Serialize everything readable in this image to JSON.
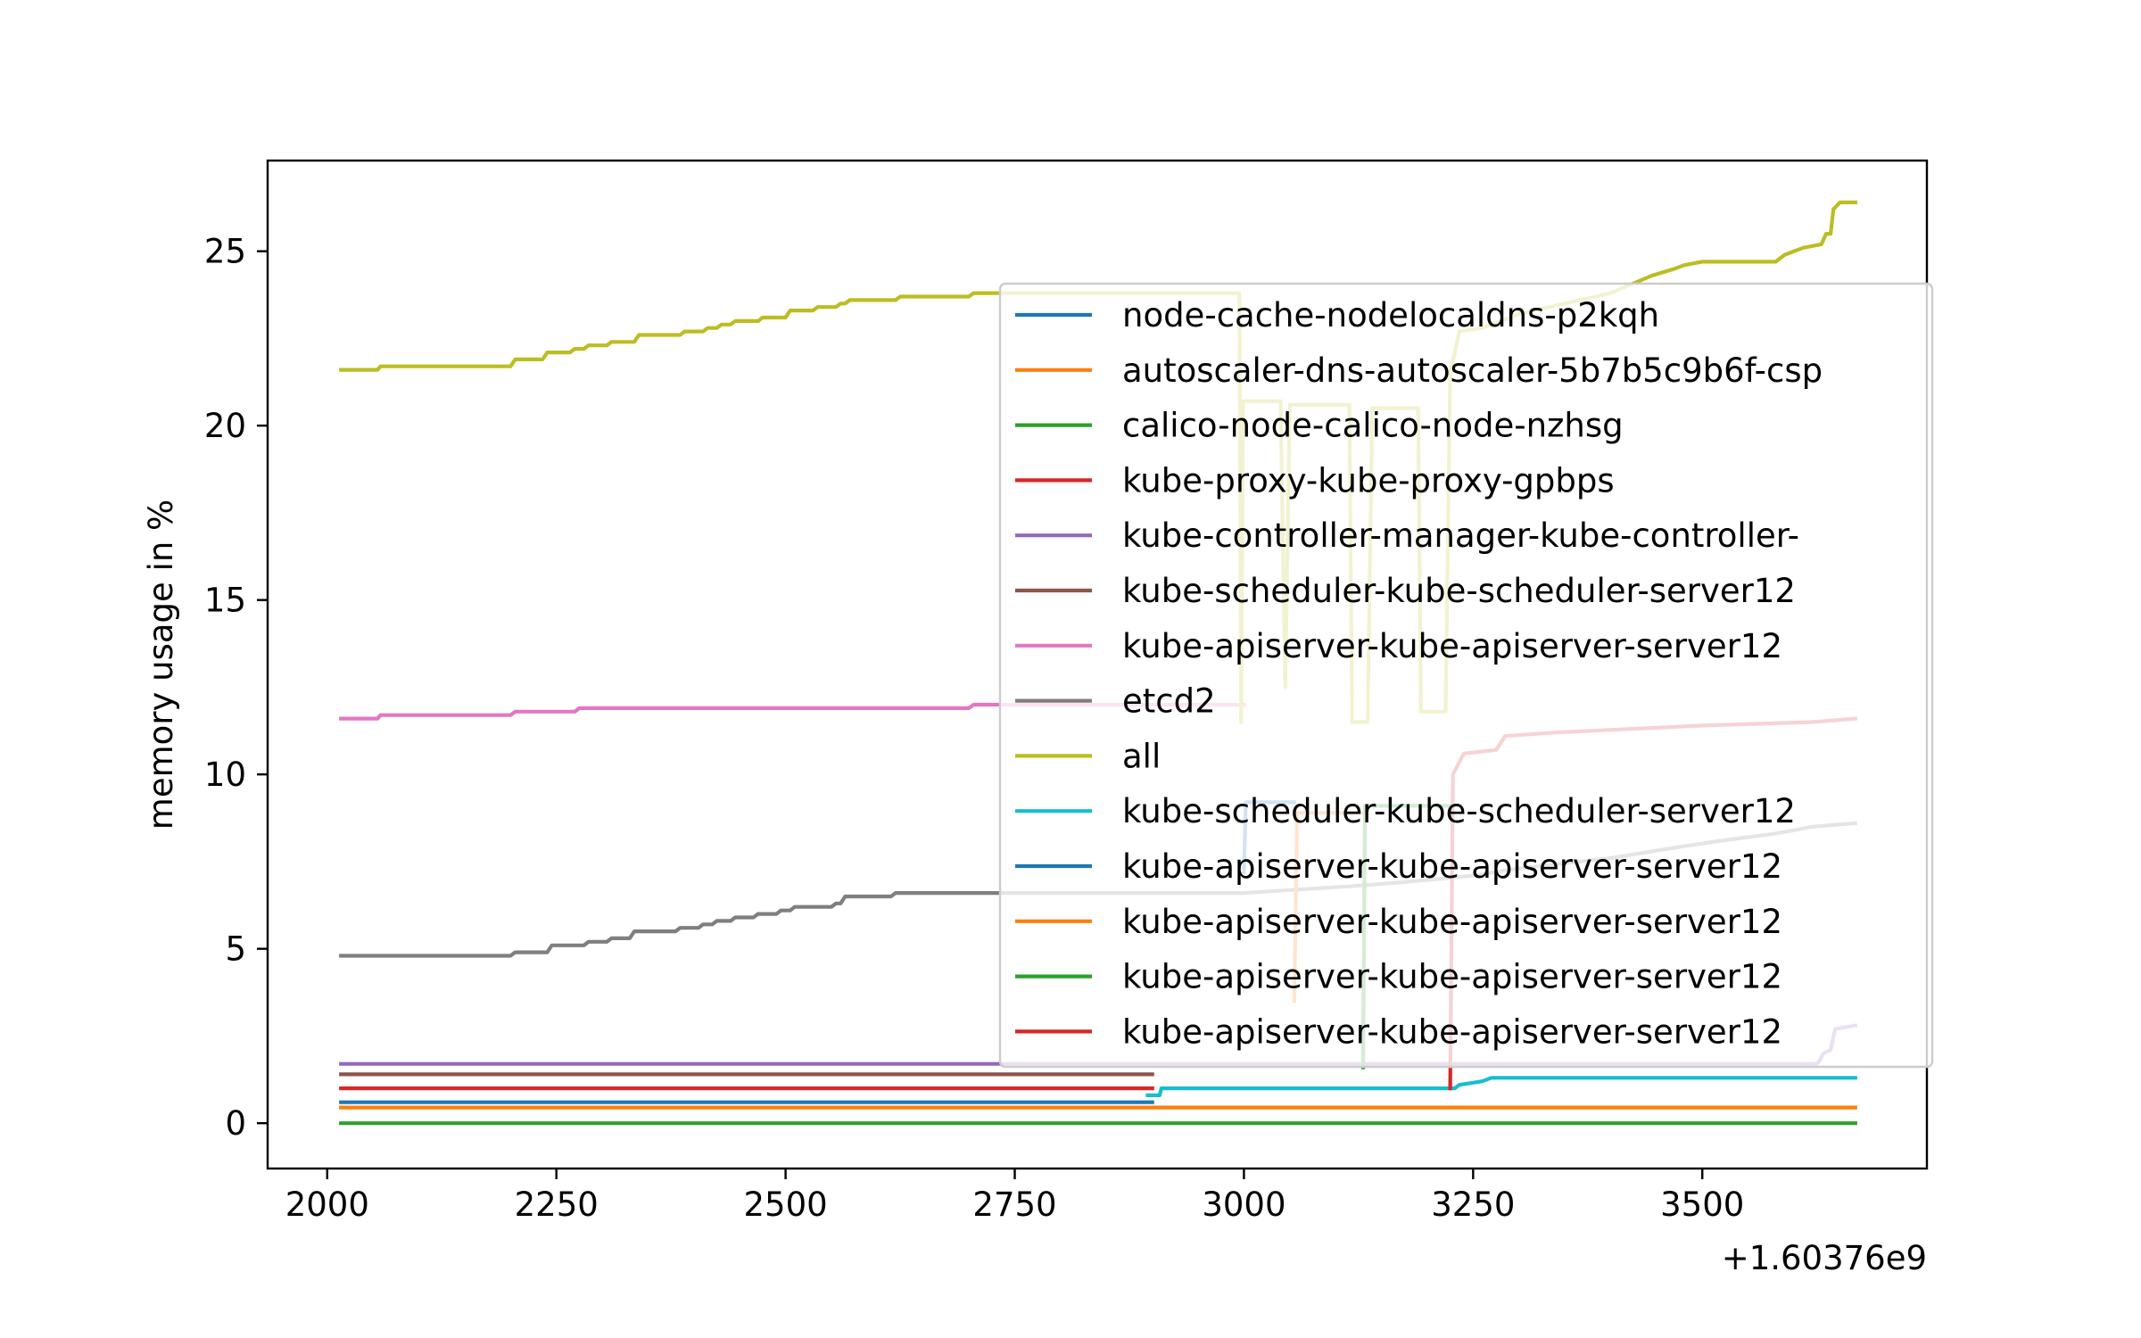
{
  "chart_data": {
    "type": "line",
    "title": "",
    "xlabel": "",
    "ylabel": "memory usage in %",
    "x_offset_label": "+1.60376e9",
    "xlim": [
      1935,
      3745
    ],
    "ylim": [
      -1.3,
      27.6
    ],
    "x_ticks": [
      2000,
      2250,
      2500,
      2750,
      3000,
      3250,
      3500
    ],
    "y_ticks": [
      0,
      5,
      10,
      15,
      20,
      25
    ],
    "grid": false,
    "legend_position": "right",
    "legend_alpha": 0.8,
    "series": [
      {
        "name": "node-cache-nodelocaldns-p2kqh",
        "color": "#1f77b4",
        "points": [
          [
            2015,
            0.6
          ],
          [
            2900,
            0.6
          ]
        ]
      },
      {
        "name": "autoscaler-dns-autoscaler-5b7b5c9b6f-csp",
        "color": "#ff7f0e",
        "points": [
          [
            2015,
            0.45
          ],
          [
            3667,
            0.45
          ]
        ]
      },
      {
        "name": "calico-node-calico-node-nzhsg",
        "color": "#2ca02c",
        "points": [
          [
            2015,
            0.0
          ],
          [
            3667,
            0.0
          ]
        ]
      },
      {
        "name": "kube-proxy-kube-proxy-gpbps",
        "color": "#d62728",
        "points": [
          [
            2015,
            1.0
          ],
          [
            2900,
            1.0
          ]
        ]
      },
      {
        "name": "kube-controller-manager-kube-controller-",
        "color": "#9467bd",
        "points": [
          [
            2015,
            1.7
          ],
          [
            3625,
            1.7
          ],
          [
            3628,
            1.8
          ],
          [
            3632,
            2.0
          ],
          [
            3640,
            2.1
          ],
          [
            3645,
            2.7
          ],
          [
            3667,
            2.8
          ]
        ]
      },
      {
        "name": "kube-scheduler-kube-scheduler-server12",
        "color": "#8c564b",
        "points": [
          [
            2015,
            1.4
          ],
          [
            2900,
            1.4
          ]
        ]
      },
      {
        "name": "kube-apiserver-kube-apiserver-server12",
        "color": "#e377c2",
        "points": [
          [
            2015,
            11.6
          ],
          [
            2055,
            11.6
          ],
          [
            2058,
            11.7
          ],
          [
            2200,
            11.7
          ],
          [
            2205,
            11.8
          ],
          [
            2270,
            11.8
          ],
          [
            2275,
            11.9
          ],
          [
            2700,
            11.9
          ],
          [
            2705,
            12.0
          ],
          [
            3000,
            12.0
          ]
        ]
      },
      {
        "name": "etcd2",
        "color": "#7f7f7f",
        "points": [
          [
            2015,
            4.8
          ],
          [
            2200,
            4.8
          ],
          [
            2205,
            4.9
          ],
          [
            2240,
            4.9
          ],
          [
            2245,
            5.1
          ],
          [
            2280,
            5.1
          ],
          [
            2285,
            5.2
          ],
          [
            2305,
            5.2
          ],
          [
            2310,
            5.3
          ],
          [
            2330,
            5.3
          ],
          [
            2335,
            5.5
          ],
          [
            2380,
            5.5
          ],
          [
            2385,
            5.6
          ],
          [
            2405,
            5.6
          ],
          [
            2410,
            5.7
          ],
          [
            2420,
            5.7
          ],
          [
            2425,
            5.8
          ],
          [
            2440,
            5.8
          ],
          [
            2445,
            5.9
          ],
          [
            2465,
            5.9
          ],
          [
            2470,
            6.0
          ],
          [
            2490,
            6.0
          ],
          [
            2495,
            6.1
          ],
          [
            2505,
            6.1
          ],
          [
            2510,
            6.2
          ],
          [
            2550,
            6.2
          ],
          [
            2555,
            6.3
          ],
          [
            2560,
            6.3
          ],
          [
            2565,
            6.5
          ],
          [
            2615,
            6.5
          ],
          [
            2620,
            6.6
          ],
          [
            3000,
            6.6
          ],
          [
            3120,
            6.8
          ],
          [
            3170,
            6.9
          ],
          [
            3250,
            7.1
          ],
          [
            3300,
            7.3
          ],
          [
            3400,
            7.6
          ],
          [
            3470,
            7.9
          ],
          [
            3520,
            8.1
          ],
          [
            3580,
            8.3
          ],
          [
            3620,
            8.5
          ],
          [
            3667,
            8.6
          ]
        ]
      },
      {
        "name": "all",
        "color": "#bcbd22",
        "points": [
          [
            2015,
            21.6
          ],
          [
            2055,
            21.6
          ],
          [
            2058,
            21.7
          ],
          [
            2200,
            21.7
          ],
          [
            2205,
            21.9
          ],
          [
            2235,
            21.9
          ],
          [
            2240,
            22.1
          ],
          [
            2265,
            22.1
          ],
          [
            2270,
            22.2
          ],
          [
            2280,
            22.2
          ],
          [
            2285,
            22.3
          ],
          [
            2305,
            22.3
          ],
          [
            2310,
            22.4
          ],
          [
            2335,
            22.4
          ],
          [
            2340,
            22.6
          ],
          [
            2385,
            22.6
          ],
          [
            2390,
            22.7
          ],
          [
            2410,
            22.7
          ],
          [
            2415,
            22.8
          ],
          [
            2425,
            22.8
          ],
          [
            2430,
            22.9
          ],
          [
            2440,
            22.9
          ],
          [
            2445,
            23.0
          ],
          [
            2470,
            23.0
          ],
          [
            2475,
            23.1
          ],
          [
            2500,
            23.1
          ],
          [
            2505,
            23.3
          ],
          [
            2530,
            23.3
          ],
          [
            2535,
            23.4
          ],
          [
            2555,
            23.4
          ],
          [
            2560,
            23.5
          ],
          [
            2565,
            23.5
          ],
          [
            2570,
            23.6
          ],
          [
            2620,
            23.6
          ],
          [
            2625,
            23.7
          ],
          [
            2700,
            23.7
          ],
          [
            2705,
            23.8
          ],
          [
            2995,
            23.8
          ],
          [
            2997,
            11.5
          ],
          [
            2999,
            20.7
          ],
          [
            3040,
            20.7
          ],
          [
            3045,
            12.5
          ],
          [
            3050,
            20.6
          ],
          [
            3115,
            20.6
          ],
          [
            3118,
            11.5
          ],
          [
            3135,
            11.5
          ],
          [
            3140,
            20.5
          ],
          [
            3190,
            20.5
          ],
          [
            3193,
            11.8
          ],
          [
            3220,
            11.8
          ],
          [
            3225,
            21.5
          ],
          [
            3235,
            22.7
          ],
          [
            3260,
            22.8
          ],
          [
            3300,
            23.2
          ],
          [
            3400,
            23.8
          ],
          [
            3445,
            24.3
          ],
          [
            3470,
            24.5
          ],
          [
            3480,
            24.6
          ],
          [
            3500,
            24.7
          ],
          [
            3580,
            24.7
          ],
          [
            3590,
            24.9
          ],
          [
            3610,
            25.1
          ],
          [
            3630,
            25.2
          ],
          [
            3635,
            25.5
          ],
          [
            3640,
            25.5
          ],
          [
            3643,
            26.2
          ],
          [
            3650,
            26.4
          ],
          [
            3667,
            26.4
          ]
        ]
      },
      {
        "name": "kube-scheduler-kube-scheduler-server12",
        "color": "#17becf",
        "points": [
          [
            2895,
            0.8
          ],
          [
            2908,
            0.8
          ],
          [
            2910,
            1.0
          ],
          [
            3230,
            1.0
          ],
          [
            3235,
            1.1
          ],
          [
            3260,
            1.2
          ],
          [
            3270,
            1.3
          ],
          [
            3667,
            1.3
          ]
        ]
      },
      {
        "name": "kube-apiserver-kube-apiserver-server12",
        "color": "#1f77b4",
        "points": [
          [
            3000,
            7.2
          ],
          [
            3002,
            9.2
          ],
          [
            3055,
            9.2
          ]
        ]
      },
      {
        "name": "kube-apiserver-kube-apiserver-server12",
        "color": "#ff7f0e",
        "points": [
          [
            3055,
            3.5
          ],
          [
            3058,
            8.9
          ],
          [
            3128,
            8.9
          ]
        ]
      },
      {
        "name": "kube-apiserver-kube-apiserver-server12",
        "color": "#2ca02c",
        "points": [
          [
            3130,
            1.6
          ],
          [
            3132,
            9.1
          ],
          [
            3225,
            9.1
          ]
        ]
      },
      {
        "name": "kube-apiserver-kube-apiserver-server12",
        "color": "#d62728",
        "points": [
          [
            3225,
            1.0
          ],
          [
            3228,
            10.0
          ],
          [
            3240,
            10.6
          ],
          [
            3275,
            10.7
          ],
          [
            3285,
            11.1
          ],
          [
            3340,
            11.2
          ],
          [
            3420,
            11.3
          ],
          [
            3500,
            11.4
          ],
          [
            3620,
            11.5
          ],
          [
            3667,
            11.6
          ]
        ]
      }
    ]
  }
}
